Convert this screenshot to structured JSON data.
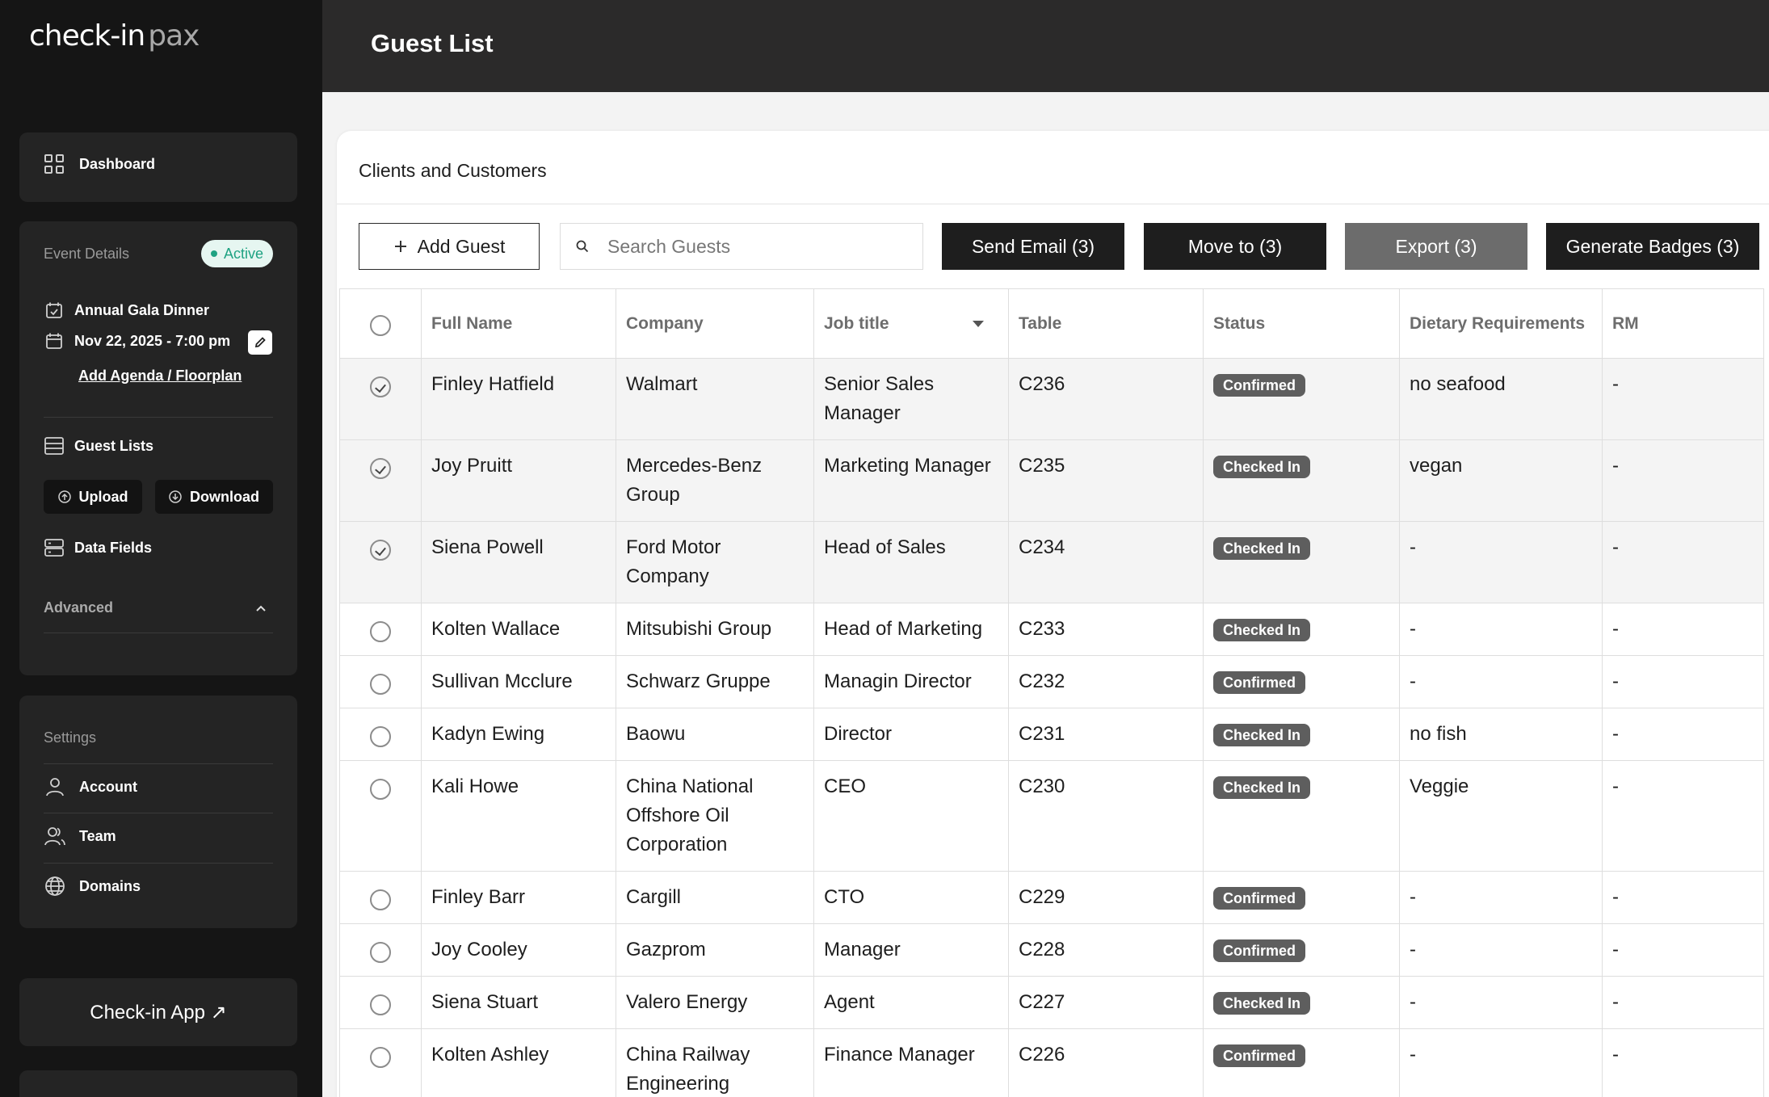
{
  "brand": {
    "part1": "check-in",
    "part2": "pax"
  },
  "header": {
    "title": "Guest List"
  },
  "sidebar": {
    "dashboard_label": "Dashboard",
    "event_details_label": "Event Details",
    "status_label": "Active",
    "event_name": "Annual Gala Dinner",
    "event_datetime": "Nov 22, 2025 - 7:00 pm",
    "agenda_link": "Add Agenda / Floorplan",
    "guest_lists_label": "Guest Lists",
    "upload_label": "Upload",
    "download_label": "Download",
    "data_fields_label": "Data Fields",
    "advanced_label": "Advanced",
    "settings_label": "Settings",
    "account_label": "Account",
    "team_label": "Team",
    "domains_label": "Domains",
    "checkin_app_label": "Check-in App ↗"
  },
  "panel": {
    "title": "Clients and Customers"
  },
  "toolbar": {
    "add_guest": "Add Guest",
    "search_placeholder": "Search Guests",
    "send_email": "Send Email (3)",
    "move_to": "Move to (3)",
    "export": "Export (3)",
    "generate_badges": "Generate Badges (3)"
  },
  "table": {
    "columns": [
      "Full Name",
      "Company",
      "Job title",
      "Table",
      "Status",
      "Dietary Requirements",
      "RM"
    ],
    "rows": [
      {
        "selected": true,
        "name": "Finley Hatfield",
        "company": "Walmart",
        "job": "Senior Sales Manager",
        "table": "C236",
        "status": "Confirmed",
        "dietary": "no seafood",
        "rm": "-"
      },
      {
        "selected": true,
        "name": "Joy Pruitt",
        "company": "Mercedes-Benz Group",
        "job": "Marketing Manager",
        "table": "C235",
        "status": "Checked In",
        "dietary": "vegan",
        "rm": "-"
      },
      {
        "selected": true,
        "name": "Siena Powell",
        "company": "Ford Motor Company",
        "job": "Head of Sales",
        "table": "C234",
        "status": "Checked In",
        "dietary": "-",
        "rm": "-"
      },
      {
        "selected": false,
        "name": "Kolten Wallace",
        "company": "Mitsubishi Group",
        "job": "Head of Marketing",
        "table": "C233",
        "status": "Checked In",
        "dietary": "-",
        "rm": "-"
      },
      {
        "selected": false,
        "name": "Sullivan Mcclure",
        "company": "Schwarz Gruppe",
        "job": "Managin Director",
        "table": "C232",
        "status": "Confirmed",
        "dietary": "-",
        "rm": "-"
      },
      {
        "selected": false,
        "name": "Kadyn Ewing",
        "company": "Baowu",
        "job": "Director",
        "table": "C231",
        "status": "Checked In",
        "dietary": "no fish",
        "rm": "-"
      },
      {
        "selected": false,
        "name": "Kali Howe",
        "company": "China National Offshore Oil Corporation",
        "job": "CEO",
        "table": "C230",
        "status": "Checked In",
        "dietary": "Veggie",
        "rm": "-"
      },
      {
        "selected": false,
        "name": "Finley Barr",
        "company": "Cargill",
        "job": "CTO",
        "table": "C229",
        "status": "Confirmed",
        "dietary": "-",
        "rm": "-"
      },
      {
        "selected": false,
        "name": "Joy Cooley",
        "company": "Gazprom",
        "job": "Manager",
        "table": "C228",
        "status": "Confirmed",
        "dietary": "-",
        "rm": "-"
      },
      {
        "selected": false,
        "name": "Siena Stuart",
        "company": "Valero Energy",
        "job": "Agent",
        "table": "C227",
        "status": "Checked In",
        "dietary": "-",
        "rm": "-"
      },
      {
        "selected": false,
        "name": "Kolten Ashley",
        "company": "China Railway Engineering Corporation",
        "job": "Finance Manager",
        "table": "C226",
        "status": "Confirmed",
        "dietary": "-",
        "rm": "-"
      }
    ]
  }
}
